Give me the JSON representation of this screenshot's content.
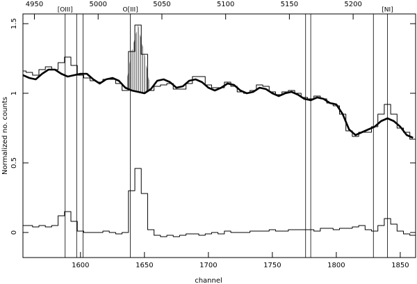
{
  "chart_data": {
    "type": "line",
    "xlabel": "channel",
    "ylabel": "Normalized no. counts",
    "x": [
      1555,
      1560,
      1565,
      1570,
      1575,
      1580,
      1585,
      1590,
      1595,
      1600,
      1605,
      1610,
      1615,
      1620,
      1625,
      1630,
      1635,
      1640,
      1645,
      1650,
      1655,
      1660,
      1665,
      1670,
      1675,
      1680,
      1685,
      1690,
      1695,
      1700,
      1705,
      1710,
      1715,
      1720,
      1725,
      1730,
      1735,
      1740,
      1745,
      1750,
      1755,
      1760,
      1765,
      1770,
      1775,
      1780,
      1785,
      1790,
      1795,
      1800,
      1805,
      1810,
      1815,
      1820,
      1825,
      1830,
      1835,
      1840,
      1845,
      1850,
      1855,
      1860
    ],
    "series": [
      {
        "color": "#000000",
        "style": "step",
        "width": 1,
        "values": [
          1.16,
          1.15,
          1.13,
          1.17,
          1.19,
          1.17,
          1.22,
          1.26,
          1.2,
          1.13,
          1.11,
          1.09,
          1.08,
          1.1,
          1.1,
          1.07,
          1.02,
          1.3,
          1.49,
          1.28,
          1.02,
          1.05,
          1.06,
          1.07,
          1.03,
          1.03,
          1.07,
          1.12,
          1.12,
          1.06,
          1.04,
          1.04,
          1.08,
          1.05,
          1.01,
          1.0,
          1.02,
          1.06,
          1.05,
          1.01,
          0.99,
          1.01,
          1.02,
          1.0,
          0.97,
          0.96,
          0.98,
          0.96,
          0.93,
          0.91,
          0.85,
          0.73,
          0.69,
          0.72,
          0.72,
          0.76,
          0.85,
          0.92,
          0.85,
          0.75,
          0.72,
          0.67
        ]
      },
      {
        "color": "#000000",
        "style": "smooth",
        "width": 2.6,
        "values": [
          1.13,
          1.11,
          1.1,
          1.14,
          1.17,
          1.17,
          1.14,
          1.12,
          1.13,
          1.14,
          1.14,
          1.1,
          1.07,
          1.1,
          1.11,
          1.09,
          1.04,
          1.02,
          1.01,
          1.0,
          1.03,
          1.09,
          1.1,
          1.08,
          1.04,
          1.05,
          1.09,
          1.1,
          1.08,
          1.04,
          1.02,
          1.04,
          1.07,
          1.06,
          1.02,
          1.0,
          1.01,
          1.04,
          1.03,
          1.0,
          0.98,
          1.0,
          1.01,
          0.99,
          0.96,
          0.95,
          0.97,
          0.96,
          0.93,
          0.92,
          0.85,
          0.74,
          0.7,
          0.72,
          0.74,
          0.76,
          0.8,
          0.82,
          0.8,
          0.76,
          0.7,
          0.68
        ]
      },
      {
        "color": "#000000",
        "style": "step",
        "width": 1,
        "values": [
          0.05,
          0.05,
          0.04,
          0.05,
          0.04,
          0.05,
          0.12,
          0.15,
          0.08,
          0.01,
          0.0,
          0.0,
          0.0,
          0.01,
          0.0,
          -0.01,
          0.0,
          0.3,
          0.46,
          0.28,
          0.02,
          -0.02,
          -0.03,
          -0.02,
          -0.03,
          -0.02,
          -0.01,
          -0.01,
          -0.02,
          -0.01,
          0.0,
          -0.01,
          0.01,
          0.0,
          0.0,
          0.0,
          0.01,
          0.01,
          0.01,
          0.02,
          0.01,
          0.01,
          0.02,
          0.02,
          0.02,
          0.02,
          0.01,
          0.03,
          0.03,
          0.02,
          0.03,
          0.03,
          0.04,
          0.05,
          0.02,
          0.01,
          0.05,
          0.1,
          0.06,
          0.01,
          -0.01,
          -0.02
        ]
      }
    ],
    "xlim": [
      1555,
      1862
    ],
    "xticks": [
      1600,
      1650,
      1700,
      1750,
      1800,
      1850
    ],
    "x2lim": [
      4941,
      5249
    ],
    "x2ticks": [
      4950,
      5000,
      5050,
      5100,
      5150,
      5200
    ],
    "ylim": [
      -0.18,
      1.57
    ],
    "yticks": [
      0,
      0.5,
      1,
      1.5
    ],
    "vlines": [
      {
        "x": 1588,
        "label": "[OIII]"
      },
      {
        "x": 1597
      },
      {
        "x": 1602
      },
      {
        "x": 1639,
        "label": "O[III]"
      },
      {
        "x": 1776
      },
      {
        "x": 1780
      },
      {
        "x": 1829
      },
      {
        "x": 1840,
        "label": "[NI]"
      }
    ]
  }
}
